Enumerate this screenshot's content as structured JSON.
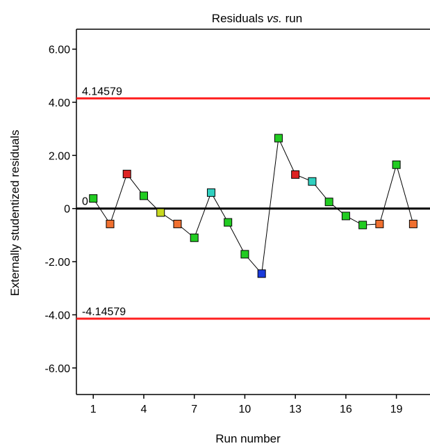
{
  "chart_data": {
    "type": "line",
    "title_main": "Residuals ",
    "title_italic": "vs.",
    "title_end": " run",
    "xlabel": "Run number",
    "ylabel": "Externally studentized residuals",
    "xlim": [
      0,
      20.5
    ],
    "ylim": [
      -7,
      6.75
    ],
    "x_ticks": [
      1,
      4,
      7,
      10,
      13,
      16,
      19
    ],
    "y_ticks": [
      {
        "value": 6,
        "label": "6.00"
      },
      {
        "value": 4,
        "label": "4.00"
      },
      {
        "value": 2,
        "label": "2.00"
      },
      {
        "value": 0,
        "label": "0"
      },
      {
        "value": -2,
        "label": "-2.00"
      },
      {
        "value": -4,
        "label": "-4.00"
      },
      {
        "value": -6,
        "label": "-6.00"
      }
    ],
    "reference_lines": [
      {
        "value": 4.14579,
        "label": "4.14579",
        "color": "#ff2020"
      },
      {
        "value": 0,
        "label": "0",
        "color": "#000000"
      },
      {
        "value": -4.14579,
        "label": "-4.14579",
        "color": "#ff2020"
      }
    ],
    "grid": false,
    "series": [
      {
        "points": [
          {
            "x": 1,
            "y": 0.38,
            "color": "#22cc22"
          },
          {
            "x": 2,
            "y": -0.58,
            "color": "#f07030"
          },
          {
            "x": 3,
            "y": 1.3,
            "color": "#dd2222"
          },
          {
            "x": 4,
            "y": 0.48,
            "color": "#22cc22"
          },
          {
            "x": 5,
            "y": -0.15,
            "color": "#c8d820"
          },
          {
            "x": 6,
            "y": -0.58,
            "color": "#f07030"
          },
          {
            "x": 7,
            "y": -1.1,
            "color": "#22cc22"
          },
          {
            "x": 8,
            "y": 0.6,
            "color": "#30d0c0"
          },
          {
            "x": 9,
            "y": -0.52,
            "color": "#22cc22"
          },
          {
            "x": 10,
            "y": -1.72,
            "color": "#22cc22"
          },
          {
            "x": 11,
            "y": -2.45,
            "color": "#1a3adb"
          },
          {
            "x": 12,
            "y": 2.65,
            "color": "#22cc22"
          },
          {
            "x": 13,
            "y": 1.28,
            "color": "#dd2222"
          },
          {
            "x": 14,
            "y": 1.02,
            "color": "#30d0c0"
          },
          {
            "x": 15,
            "y": 0.25,
            "color": "#22cc22"
          },
          {
            "x": 16,
            "y": -0.28,
            "color": "#22cc22"
          },
          {
            "x": 17,
            "y": -0.62,
            "color": "#22cc22"
          },
          {
            "x": 18,
            "y": -0.58,
            "color": "#f07030"
          },
          {
            "x": 19,
            "y": 1.65,
            "color": "#22cc22"
          },
          {
            "x": 20,
            "y": -0.58,
            "color": "#f07030"
          }
        ]
      }
    ]
  }
}
